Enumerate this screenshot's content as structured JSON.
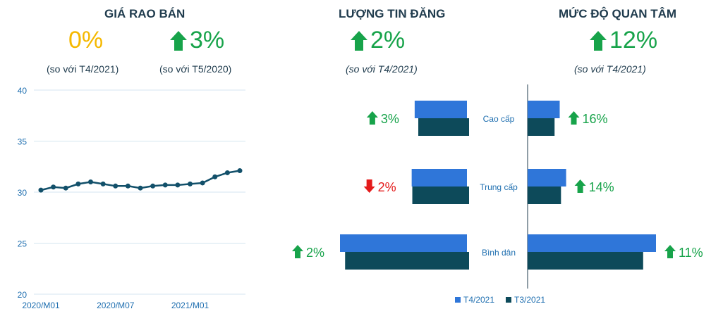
{
  "colors": {
    "up": "#17a34a",
    "down": "#e41b1b",
    "neutral": "#f5b800",
    "t4": "#2f76d9",
    "t3": "#0d4a5a",
    "line": "#12506a",
    "axis_text": "#1f6fb0"
  },
  "price": {
    "title": "GIÁ RAO BÁN",
    "mom_value": "0%",
    "mom_note": "(so với T4/2021)",
    "yoy_value": "3%",
    "yoy_note": "(so với T5/2020)"
  },
  "listings": {
    "title": "LƯỢNG TIN ĐĂNG",
    "value": "2%",
    "note": "(so với T4/2021)"
  },
  "interest": {
    "title": "MỨC ĐỘ QUAN TÂM",
    "value": "12%",
    "note": "(so với T4/2021)"
  },
  "chart_data": [
    {
      "type": "line",
      "x": [
        "2020/M01",
        "2020/M02",
        "2020/M03",
        "2020/M04",
        "2020/M05",
        "2020/M06",
        "2020/M07",
        "2020/M08",
        "2020/M09",
        "2020/M10",
        "2020/M11",
        "2020/M12",
        "2021/M01",
        "2021/M02",
        "2021/M03",
        "2021/M04",
        "2021/M05"
      ],
      "values": [
        30.2,
        30.5,
        30.4,
        30.8,
        31.0,
        30.8,
        30.6,
        30.6,
        30.4,
        30.6,
        30.7,
        30.7,
        30.8,
        30.9,
        31.5,
        31.9,
        32.1
      ],
      "xticks": [
        "2020/M01",
        "2020/M07",
        "2021/M01"
      ],
      "yticks": [
        "20",
        "25",
        "30",
        "35",
        "40"
      ],
      "ylim": [
        20,
        40
      ],
      "grid": true
    },
    {
      "type": "bar",
      "orientation": "horizontal-left",
      "categories": [
        "Cao cấp",
        "Trung cấp",
        "Bình dân"
      ],
      "series": [
        {
          "name": "T4/2021",
          "values": [
            0.35,
            0.37,
            0.85
          ]
        },
        {
          "name": "T3/2021",
          "values": [
            0.34,
            0.38,
            0.83
          ]
        }
      ],
      "changes": [
        {
          "dir": "up",
          "label": "3%"
        },
        {
          "dir": "down",
          "label": "2%"
        },
        {
          "dir": "up",
          "label": "2%"
        }
      ]
    },
    {
      "type": "bar",
      "orientation": "horizontal-right",
      "categories": [
        "Cao cấp",
        "Trung cấp",
        "Bình dân"
      ],
      "series": [
        {
          "name": "T4/2021",
          "values": [
            0.25,
            0.3,
            1.0
          ]
        },
        {
          "name": "T3/2021",
          "values": [
            0.21,
            0.26,
            0.9
          ]
        }
      ],
      "changes": [
        {
          "dir": "up",
          "label": "16%"
        },
        {
          "dir": "up",
          "label": "14%"
        },
        {
          "dir": "up",
          "label": "11%"
        }
      ]
    }
  ],
  "legend": {
    "t4": "T4/2021",
    "t3": "T3/2021"
  }
}
